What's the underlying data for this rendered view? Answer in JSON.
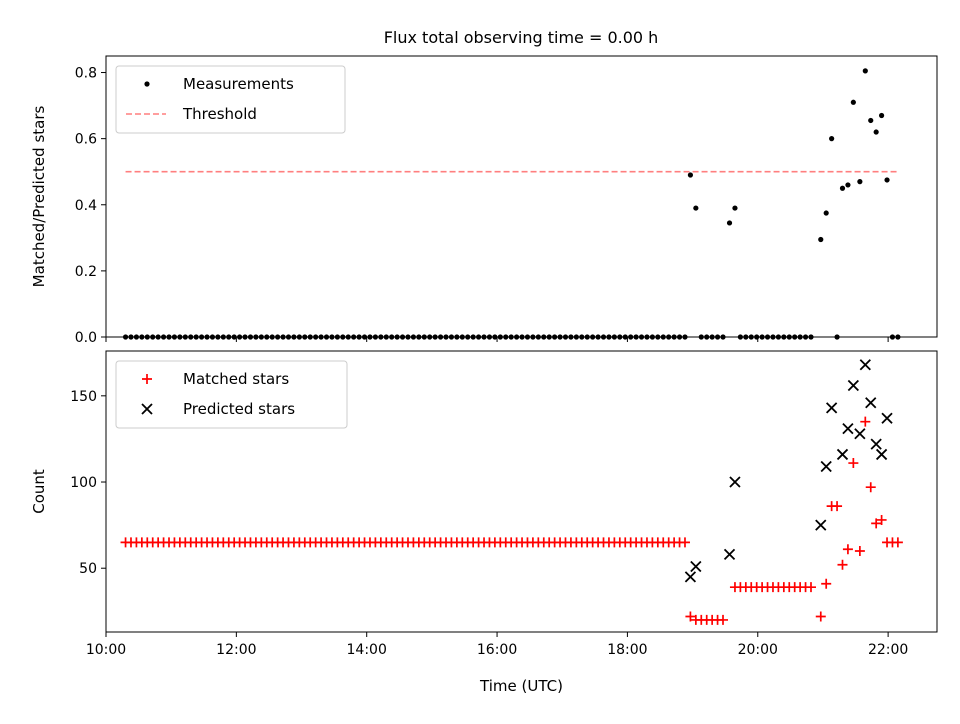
{
  "chart_data": [
    {
      "type": "scatter",
      "title": "Flux total observing time = 0.00 h",
      "xlabel": "",
      "ylabel": "Matched/Predicted stars",
      "xlim": [
        "10:00",
        "22:45"
      ],
      "ylim": [
        0,
        0.85
      ],
      "yticks": [
        "0.0",
        "0.2",
        "0.4",
        "0.6",
        "0.8"
      ],
      "xticks": [
        "10:00",
        "12:00",
        "14:00",
        "16:00",
        "18:00",
        "20:00",
        "22:00"
      ],
      "show_xtick_labels": false,
      "grid": false,
      "legend_position": "upper left",
      "series": [
        {
          "name": "Measurements",
          "marker": "dot",
          "color": "#000000",
          "points": [
            [
              "18:58",
              0.49
            ],
            [
              "19:03",
              0.39
            ],
            [
              "19:34",
              0.345
            ],
            [
              "19:39",
              0.39
            ],
            [
              "20:58",
              0.295
            ],
            [
              "21:03",
              0.375
            ],
            [
              "21:08",
              0.6
            ],
            [
              "21:18",
              0.45
            ],
            [
              "21:23",
              0.46
            ],
            [
              "21:28",
              0.71
            ],
            [
              "21:34",
              0.47
            ],
            [
              "21:39",
              0.805
            ],
            [
              "21:44",
              0.655
            ],
            [
              "21:49",
              0.62
            ],
            [
              "21:54",
              0.67
            ],
            [
              "21:59",
              0.475
            ]
          ],
          "zero_segments": [
            {
              "from": "10:18",
              "to": "18:53",
              "step_min": 5
            },
            {
              "from": "19:08",
              "to": "19:28",
              "step_min": 5
            },
            {
              "from": "19:44",
              "to": "20:53",
              "step_min": 5
            }
          ],
          "zero_points_extra": [
            "21:13",
            "22:04",
            "22:09"
          ]
        },
        {
          "name": "Threshold",
          "style": "dashed",
          "color": "#ff7f7f",
          "x": [
            "10:18",
            "22:09"
          ],
          "y": [
            0.5,
            0.5
          ]
        }
      ]
    },
    {
      "type": "scatter",
      "title": "",
      "xlabel": "Time (UTC)",
      "ylabel": "Count",
      "xlim": [
        "10:00",
        "22:45"
      ],
      "ylim": [
        13,
        176
      ],
      "yticks": [
        "50",
        "100",
        "150"
      ],
      "xticks": [
        "10:00",
        "12:00",
        "14:00",
        "16:00",
        "18:00",
        "20:00",
        "22:00"
      ],
      "show_xtick_labels": true,
      "grid": false,
      "legend_position": "upper left",
      "series": [
        {
          "name": "Matched stars",
          "marker": "plus",
          "color": "#ff0000",
          "segments": [
            {
              "from": "10:18",
              "to": "18:53",
              "step_min": 5,
              "value": 65
            },
            {
              "from": "18:58",
              "to": "18:58",
              "step_min": 5,
              "value": 22
            },
            {
              "from": "19:03",
              "to": "19:28",
              "step_min": 5,
              "value": 20
            },
            {
              "from": "19:39",
              "to": "20:53",
              "step_min": 5,
              "value": 39
            }
          ],
          "points": [
            [
              "20:58",
              22
            ],
            [
              "21:03",
              41
            ],
            [
              "21:08",
              86
            ],
            [
              "21:13",
              86
            ],
            [
              "21:18",
              52
            ],
            [
              "21:23",
              61
            ],
            [
              "21:28",
              111
            ],
            [
              "21:34",
              60
            ],
            [
              "21:39",
              135
            ],
            [
              "21:44",
              97
            ],
            [
              "21:49",
              76
            ],
            [
              "21:54",
              78
            ],
            [
              "21:59",
              65
            ],
            [
              "22:04",
              65
            ],
            [
              "22:09",
              65
            ]
          ]
        },
        {
          "name": "Predicted stars",
          "marker": "x",
          "color": "#000000",
          "points": [
            [
              "18:58",
              45
            ],
            [
              "19:03",
              51
            ],
            [
              "19:34",
              58
            ],
            [
              "19:39",
              100
            ],
            [
              "20:58",
              75
            ],
            [
              "21:03",
              109
            ],
            [
              "21:08",
              143
            ],
            [
              "21:18",
              116
            ],
            [
              "21:23",
              131
            ],
            [
              "21:28",
              156
            ],
            [
              "21:34",
              128
            ],
            [
              "21:39",
              168
            ],
            [
              "21:44",
              146
            ],
            [
              "21:49",
              122
            ],
            [
              "21:54",
              116
            ],
            [
              "21:59",
              137
            ]
          ]
        }
      ]
    }
  ]
}
